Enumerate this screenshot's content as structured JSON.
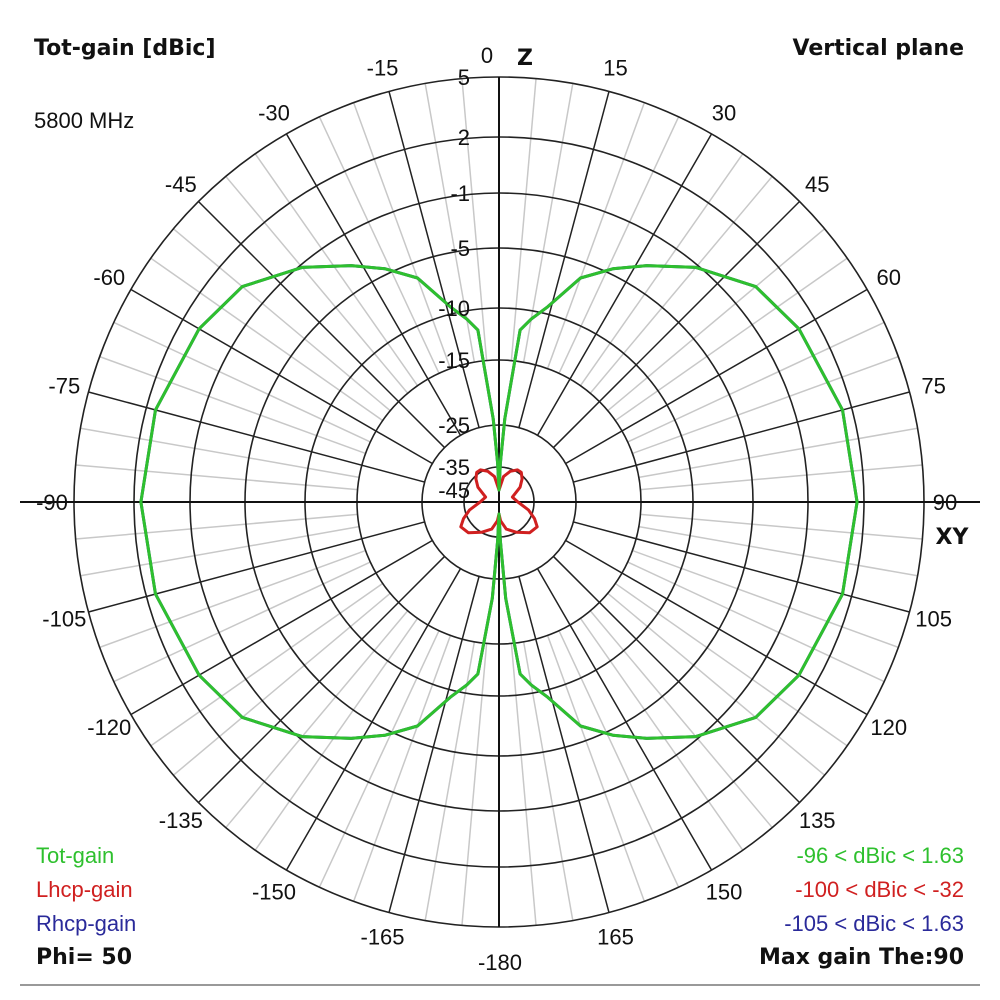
{
  "header": {
    "title": "Tot-gain [dBic]",
    "plane": "Vertical plane",
    "frequency": "5800 MHz"
  },
  "footer": {
    "phi": "Phi= 50",
    "max_gain": "Max gain The:90"
  },
  "legend": [
    {
      "name": "Tot-gain",
      "color": "#2ec02e",
      "range": "-96 < dBic < 1.63"
    },
    {
      "name": "Lhcp-gain",
      "color": "#d02020",
      "range": "-100 < dBic < -32"
    },
    {
      "name": "Rhcp-gain",
      "color": "#2a2a9a",
      "range": "-105 < dBic < 1.63"
    }
  ],
  "chart_data": {
    "type": "polar",
    "title": "Tot-gain [dBic]",
    "axis_labels": {
      "top": "Z",
      "right": "XY"
    },
    "radial_ticks": [
      "5",
      "2",
      "-1",
      "-5",
      "-10",
      "-15",
      "-25",
      "-35",
      "-45"
    ],
    "radial_values": [
      5,
      2,
      -1,
      -5,
      -10,
      -15,
      -25,
      -35,
      -45
    ],
    "angle_ticks": [
      "0",
      "15",
      "30",
      "45",
      "60",
      "75",
      "90",
      "105",
      "120",
      "135",
      "150",
      "165",
      "-180",
      "-165",
      "-150",
      "-135",
      "-120",
      "-105",
      "-90",
      "-75",
      "-60",
      "-45",
      "-30",
      "-15"
    ],
    "grid": true,
    "series": [
      {
        "name": "Tot-gain",
        "color": "#2ec02e",
        "theta": [
          0,
          2,
          4,
          7,
          10,
          14,
          20,
          26,
          32,
          40,
          50,
          60,
          75,
          90,
          105,
          120,
          130,
          140,
          148,
          154,
          160,
          166,
          170,
          173,
          176,
          178,
          180
        ],
        "dbic": [
          -45,
          -34,
          -24,
          -12,
          -10.8,
          -9.4,
          -6.3,
          -4.6,
          -3.2,
          -1.2,
          0.4,
          1.0,
          1.5,
          1.63,
          1.5,
          1.0,
          0.4,
          -1.2,
          -3.2,
          -4.6,
          -6.3,
          -9.4,
          -10.8,
          -12,
          -22,
          -34,
          -45
        ]
      },
      {
        "name": "Lhcp-gain",
        "color": "#d02020",
        "theta": [
          0,
          10,
          20,
          30,
          37,
          45,
          55,
          70,
          90,
          105,
          115,
          123,
          135,
          150,
          165,
          175,
          180
        ],
        "dbic": [
          -45,
          -39,
          -36,
          -34.5,
          -34.5,
          -36,
          -39,
          -44,
          -42,
          -37,
          -34,
          -32.5,
          -33,
          -35,
          -38,
          -42,
          -45
        ]
      },
      {
        "name": "Rhcp-gain",
        "color": "#2a2a9a",
        "theta": [
          0,
          2,
          4,
          7,
          10,
          14,
          20,
          26,
          32,
          40,
          50,
          60,
          75,
          90,
          105,
          120,
          130,
          140,
          148,
          154,
          160,
          166,
          170,
          173,
          176,
          178,
          180
        ],
        "dbic": [
          -45,
          -34,
          -24,
          -12,
          -10.8,
          -9.4,
          -6.3,
          -4.6,
          -3.2,
          -1.2,
          0.4,
          1.0,
          1.5,
          1.63,
          1.5,
          1.0,
          0.4,
          -1.2,
          -3.2,
          -4.6,
          -6.3,
          -9.4,
          -10.8,
          -12,
          -22,
          -34,
          -45
        ]
      }
    ]
  }
}
